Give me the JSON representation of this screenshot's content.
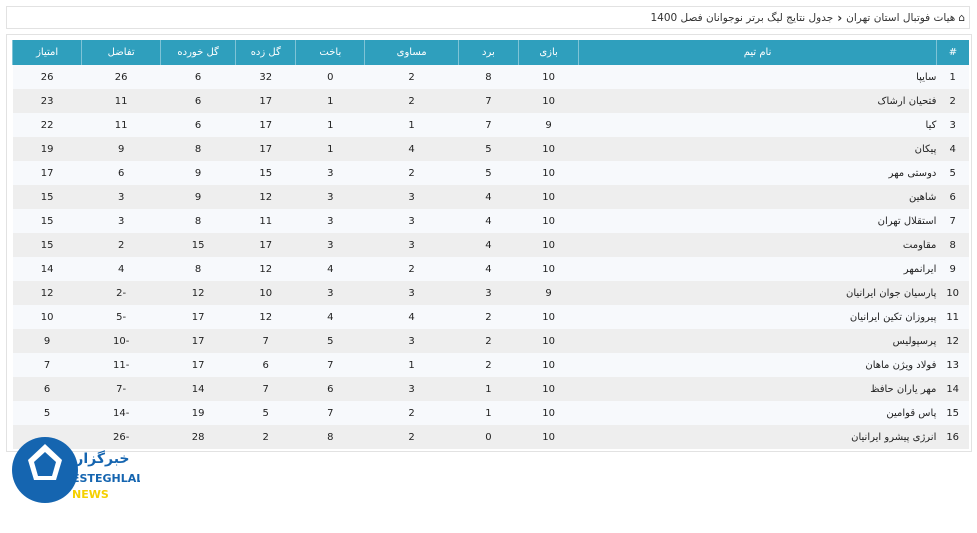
{
  "breadcrumb": {
    "home": "هیات فوتبال استان تهران",
    "current": "جدول نتایج لیگ برتر نوجوانان فصل 1400"
  },
  "table": {
    "headers": [
      "#",
      "نام تیم",
      "بازی",
      "برد",
      "مساوی",
      "باخت",
      "گل زده",
      "گل خورده",
      "تفاضل",
      "امتیاز"
    ],
    "rows": [
      [
        "1",
        "سایپا",
        "10",
        "8",
        "2",
        "0",
        "32",
        "6",
        "26",
        "26"
      ],
      [
        "2",
        "فتحیان ارشاک",
        "10",
        "7",
        "2",
        "1",
        "17",
        "6",
        "11",
        "23"
      ],
      [
        "3",
        "کیا",
        "9",
        "7",
        "1",
        "1",
        "17",
        "6",
        "11",
        "22"
      ],
      [
        "4",
        "پیکان",
        "10",
        "5",
        "4",
        "1",
        "17",
        "8",
        "9",
        "19"
      ],
      [
        "5",
        "دوستی مهر",
        "10",
        "5",
        "2",
        "3",
        "15",
        "9",
        "6",
        "17"
      ],
      [
        "6",
        "شاهین",
        "10",
        "4",
        "3",
        "3",
        "12",
        "9",
        "3",
        "15"
      ],
      [
        "7",
        "استقلال تهران",
        "10",
        "4",
        "3",
        "3",
        "11",
        "8",
        "3",
        "15"
      ],
      [
        "8",
        "مقاومت",
        "10",
        "4",
        "3",
        "3",
        "17",
        "15",
        "2",
        "15"
      ],
      [
        "9",
        "ایرانمهر",
        "10",
        "4",
        "2",
        "4",
        "12",
        "8",
        "4",
        "14"
      ],
      [
        "10",
        "پارسیان جوان ایرانیان",
        "9",
        "3",
        "3",
        "3",
        "10",
        "12",
        "2-",
        "12"
      ],
      [
        "11",
        "پیروزان تکین ایرانیان",
        "10",
        "2",
        "4",
        "4",
        "12",
        "17",
        "5-",
        "10"
      ],
      [
        "12",
        "پرسپولیس",
        "10",
        "2",
        "3",
        "5",
        "7",
        "17",
        "10-",
        "9"
      ],
      [
        "13",
        "فولاد ویژن ماهان",
        "10",
        "2",
        "1",
        "7",
        "6",
        "17",
        "11-",
        "7"
      ],
      [
        "14",
        "مهر یاران حافظ",
        "10",
        "1",
        "3",
        "6",
        "7",
        "14",
        "7-",
        "6"
      ],
      [
        "15",
        "پاس قوامین",
        "10",
        "1",
        "2",
        "7",
        "5",
        "19",
        "14-",
        "5"
      ],
      [
        "16",
        "انرژی پیشرو ایرانیان",
        "10",
        "0",
        "2",
        "8",
        "2",
        "28",
        "26-",
        ""
      ]
    ]
  },
  "logo": {
    "text_fa": "خبرگزاری",
    "text_en": "ESTEGHLAL",
    "text_news": "NEWS",
    "colors": {
      "blue": "#1565b0",
      "yellow": "#f5d000"
    }
  },
  "colors": {
    "header": "#2f9fbd"
  }
}
